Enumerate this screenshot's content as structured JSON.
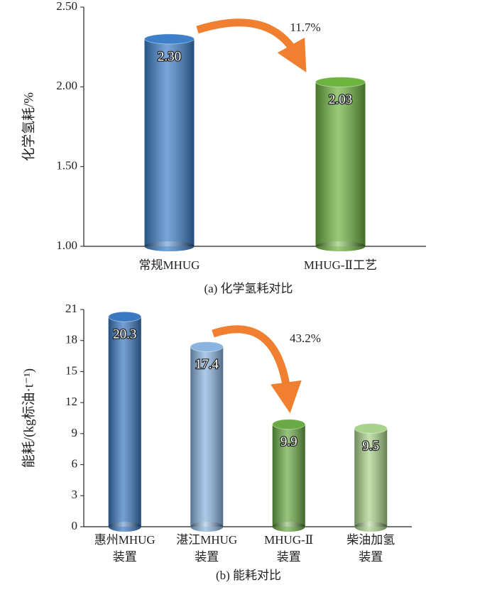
{
  "chart_data": [
    {
      "type": "bar",
      "y_label": "化学氢耗/%",
      "caption": "(a) 化学氢耗对比",
      "categories": [
        "常规MHUG",
        "MHUG-Ⅱ工艺"
      ],
      "values": [
        2.3,
        2.03
      ],
      "value_labels": [
        "2.30",
        "2.03"
      ],
      "colors": [
        "#3d7fc9",
        "#6db33f"
      ],
      "annotation": "11.7%",
      "ylim": [
        1.0,
        2.5
      ],
      "yticks": [
        {
          "value": 1.0,
          "label": "1.00"
        },
        {
          "value": 1.5,
          "label": "1.50"
        },
        {
          "value": 2.0,
          "label": "2.00"
        },
        {
          "value": 2.5,
          "label": "2.50"
        }
      ]
    },
    {
      "type": "bar",
      "y_label": "能耗/(kg标油·t⁻¹)",
      "caption": "(b) 能耗对比",
      "categories": [
        [
          "惠州MHUG",
          "装置"
        ],
        [
          "湛江MHUG",
          "装置"
        ],
        [
          "MHUG-Ⅱ",
          "装置"
        ],
        [
          "柴油加氢",
          "装置"
        ]
      ],
      "values": [
        20.3,
        17.4,
        9.9,
        9.5
      ],
      "colors": [
        "#3a78c0",
        "#8ab4e0",
        "#6aaa45",
        "#a9d38a"
      ],
      "annotation": "43.2%",
      "ylim": [
        0,
        21
      ],
      "yticks": [
        0,
        3,
        6,
        9,
        12,
        15,
        18,
        21
      ]
    }
  ]
}
